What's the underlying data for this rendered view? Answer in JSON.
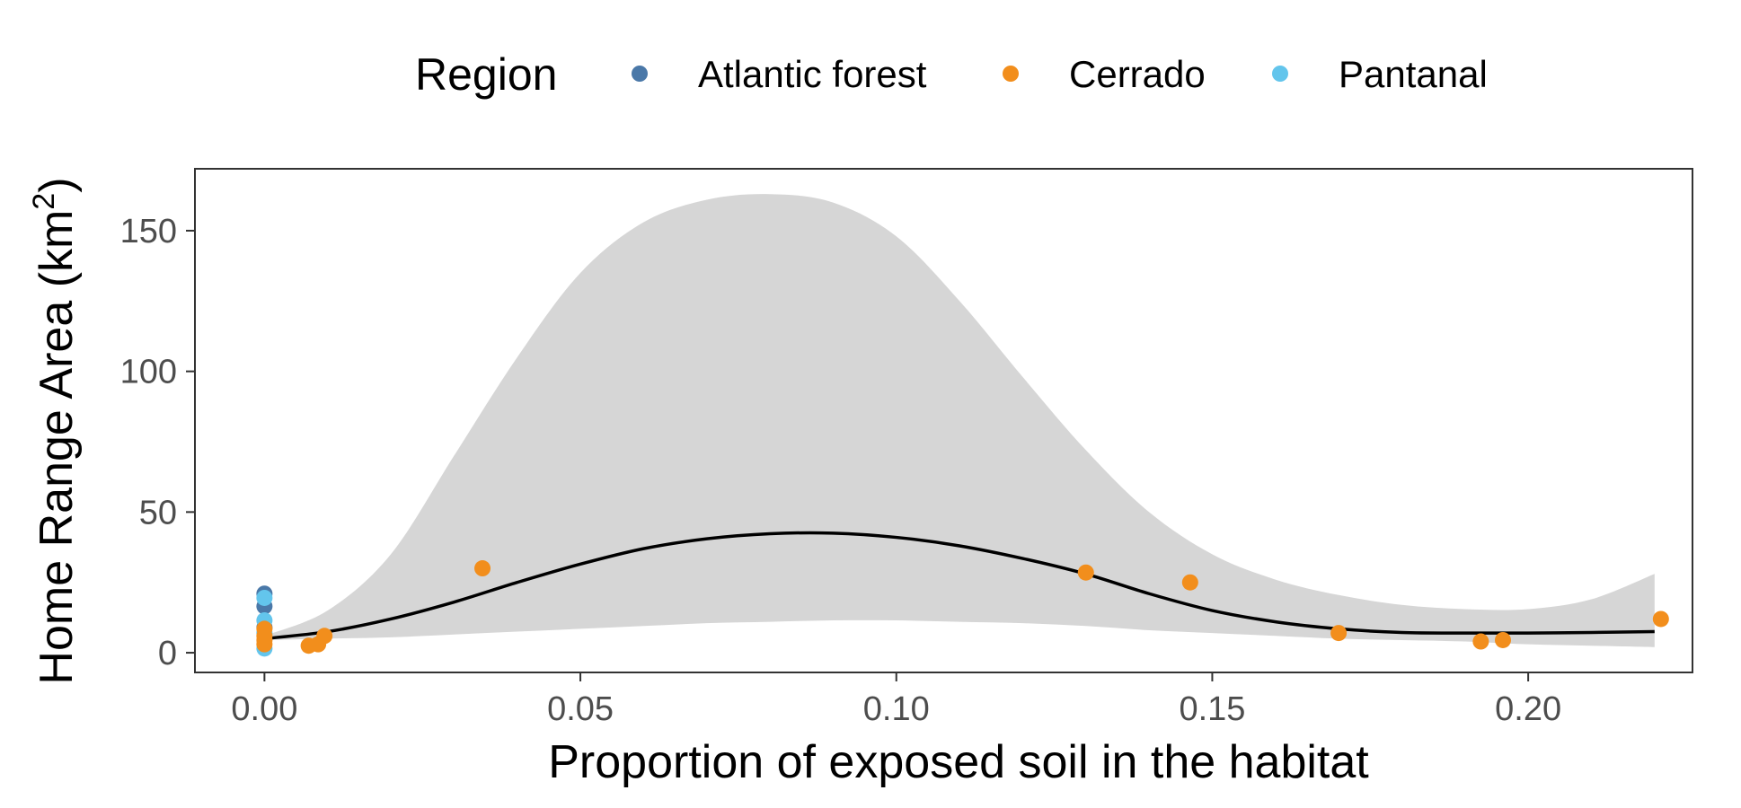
{
  "chart_data": {
    "type": "scatter",
    "xlabel": "Proportion of exposed soil in the habitat",
    "ylabel": "Home Range Area (km",
    "ylabel_sup": "2",
    "ylabel_close": ")",
    "xlim": [
      -0.011,
      0.226
    ],
    "ylim": [
      -7,
      172
    ],
    "xticks": [
      0.0,
      0.05,
      0.1,
      0.15,
      0.2
    ],
    "xtick_labels": [
      "0.00",
      "0.05",
      "0.10",
      "0.15",
      "0.20"
    ],
    "yticks": [
      0,
      50,
      100,
      150
    ],
    "ytick_labels": [
      "0",
      "50",
      "100",
      "150"
    ],
    "grid": false,
    "legend": {
      "title": "Region",
      "position": "top",
      "entries": [
        {
          "name": "Atlantic forest",
          "color": "#4a78a8"
        },
        {
          "name": "Cerrado",
          "color": "#f28e1c"
        },
        {
          "name": "Pantanal",
          "color": "#63c5ec"
        }
      ]
    },
    "series": [
      {
        "name": "Atlantic forest",
        "color": "#4a78a8",
        "points": [
          [
            0.0,
            21
          ],
          [
            0.0,
            16.5
          ],
          [
            0.0,
            9
          ]
        ]
      },
      {
        "name": "Pantanal",
        "color": "#63c5ec",
        "points": [
          [
            0.0,
            19.5
          ],
          [
            0.0,
            11.5
          ],
          [
            0.0,
            7
          ],
          [
            0.0,
            1.5
          ]
        ]
      },
      {
        "name": "Cerrado",
        "color": "#f28e1c",
        "points": [
          [
            0.0,
            3
          ],
          [
            0.0,
            4.5
          ],
          [
            0.0,
            6
          ],
          [
            0.0,
            8.5
          ],
          [
            0.007,
            2.5
          ],
          [
            0.0085,
            3
          ],
          [
            0.0095,
            6
          ],
          [
            0.0345,
            30
          ],
          [
            0.13,
            28.5
          ],
          [
            0.1465,
            25
          ],
          [
            0.17,
            7
          ],
          [
            0.1925,
            4
          ],
          [
            0.196,
            4.5
          ],
          [
            0.221,
            12
          ]
        ]
      }
    ],
    "trend": {
      "fit": [
        [
          0.0,
          5
        ],
        [
          0.01,
          7.5
        ],
        [
          0.02,
          12
        ],
        [
          0.03,
          18
        ],
        [
          0.04,
          25
        ],
        [
          0.05,
          31.5
        ],
        [
          0.06,
          37
        ],
        [
          0.07,
          40.5
        ],
        [
          0.08,
          42.3
        ],
        [
          0.09,
          42.5
        ],
        [
          0.1,
          41
        ],
        [
          0.11,
          38
        ],
        [
          0.12,
          33.5
        ],
        [
          0.13,
          28
        ],
        [
          0.14,
          21
        ],
        [
          0.15,
          15
        ],
        [
          0.16,
          11
        ],
        [
          0.17,
          8.5
        ],
        [
          0.18,
          7.2
        ],
        [
          0.19,
          7
        ],
        [
          0.2,
          7
        ],
        [
          0.21,
          7.2
        ],
        [
          0.22,
          7.5
        ]
      ],
      "upper": [
        [
          0.0,
          6
        ],
        [
          0.01,
          15
        ],
        [
          0.02,
          35
        ],
        [
          0.03,
          70
        ],
        [
          0.04,
          105
        ],
        [
          0.05,
          135
        ],
        [
          0.06,
          153
        ],
        [
          0.07,
          161
        ],
        [
          0.08,
          163
        ],
        [
          0.09,
          160
        ],
        [
          0.1,
          148
        ],
        [
          0.11,
          125
        ],
        [
          0.12,
          98
        ],
        [
          0.13,
          72
        ],
        [
          0.14,
          50
        ],
        [
          0.15,
          35
        ],
        [
          0.16,
          26
        ],
        [
          0.17,
          20.5
        ],
        [
          0.18,
          17
        ],
        [
          0.19,
          15.5
        ],
        [
          0.2,
          15.5
        ],
        [
          0.21,
          19
        ],
        [
          0.22,
          28
        ]
      ],
      "lower": [
        [
          0.0,
          4.5
        ],
        [
          0.01,
          5
        ],
        [
          0.02,
          5.5
        ],
        [
          0.03,
          6.5
        ],
        [
          0.04,
          7.5
        ],
        [
          0.05,
          8.5
        ],
        [
          0.06,
          9.5
        ],
        [
          0.07,
          10.5
        ],
        [
          0.08,
          11
        ],
        [
          0.09,
          11.5
        ],
        [
          0.1,
          11.5
        ],
        [
          0.11,
          11
        ],
        [
          0.12,
          10.5
        ],
        [
          0.13,
          9.5
        ],
        [
          0.14,
          8
        ],
        [
          0.15,
          7
        ],
        [
          0.16,
          6
        ],
        [
          0.17,
          5
        ],
        [
          0.18,
          4.5
        ],
        [
          0.19,
          4
        ],
        [
          0.2,
          3
        ],
        [
          0.21,
          2.5
        ],
        [
          0.22,
          2
        ]
      ],
      "line_color": "#000000",
      "band_color": "#d6d6d6"
    }
  }
}
